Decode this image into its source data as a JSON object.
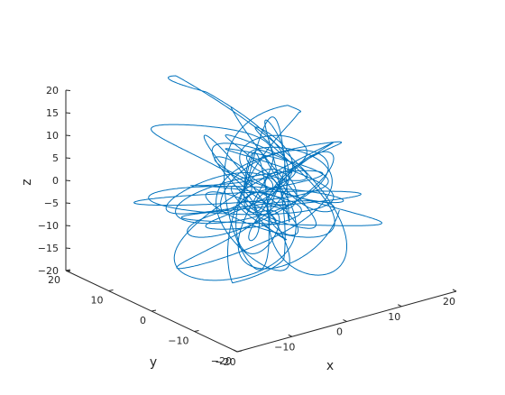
{
  "chart_data": {
    "type": "line",
    "view": "3d",
    "title": "",
    "xlabel": "x",
    "ylabel": "y",
    "zlabel": "z",
    "xlim": [
      -20,
      20
    ],
    "ylim": [
      -20,
      20
    ],
    "zlim": [
      -20,
      20
    ],
    "x_ticks": [
      -20,
      -10,
      0,
      10,
      20
    ],
    "y_ticks": [
      -20,
      -10,
      0,
      10,
      20
    ],
    "z_ticks": [
      -20,
      -15,
      -10,
      -5,
      0,
      5,
      10,
      15,
      20
    ],
    "x_tick_labels": [
      "−20",
      "−10",
      "0",
      "10",
      "20"
    ],
    "y_tick_labels": [
      "−20",
      "−10",
      "0",
      "10",
      "20"
    ],
    "z_tick_labels": [
      "−20",
      "−15",
      "−10",
      "−5",
      "0",
      "5",
      "10",
      "15",
      "20"
    ],
    "series_color": "#0072BD",
    "grid": false,
    "legend": "none",
    "description": "dense tangled 3-D curve (random walk-like trajectory) filling roughly x in [-15,15], y in [-15,15], z in [-20,20]"
  }
}
